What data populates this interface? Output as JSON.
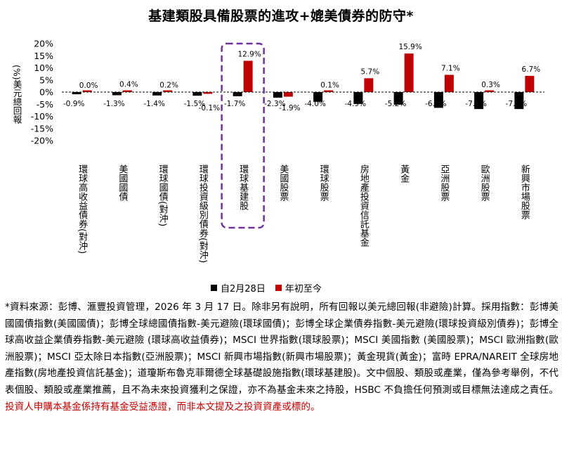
{
  "title": "基建類股具備股票的進攻+媲美債券的防守*",
  "chart_data": {
    "type": "bar",
    "ylabel": "(%)美元總回報",
    "ylim": [
      -20,
      20
    ],
    "yticks": [
      -20,
      -15,
      -10,
      -5,
      0,
      5,
      10,
      15,
      20
    ],
    "ytick_labels": [
      "-20%",
      "-15%",
      "-10%",
      "-5%",
      "0%",
      "5%",
      "10%",
      "15%",
      "20%"
    ],
    "grid": false,
    "legend_position": "bottom",
    "highlight_category_index": 4,
    "categories": [
      "環球高收益債券(對沖)",
      "美國國債",
      "環球國債(對沖)",
      "環球投資級別債券(對沖)",
      "環球基建股",
      "美國股票",
      "環球股票",
      "房地產投資信託基金",
      "黃金",
      "亞洲股票",
      "歐洲股票",
      "新興市場股票"
    ],
    "series": [
      {
        "name": "自2月28日",
        "color": "#000000",
        "values": [
          -0.9,
          -1.3,
          -1.4,
          -1.5,
          -1.7,
          -2.3,
          -4.0,
          -4.9,
          -5.2,
          -6.5,
          -7.0,
          -7.0
        ],
        "labels": [
          "-0.9%",
          "-1.3%",
          "-1.4%",
          "-1.5%",
          "-1.7%",
          "-2.3%",
          "-4.0%",
          "-4.9%",
          "-5.2%",
          "-6.5%",
          "-7.0%",
          "-7.0%"
        ]
      },
      {
        "name": "年初至今",
        "color": "#c00000",
        "values": [
          0.0,
          0.4,
          0.2,
          -0.1,
          12.9,
          -1.9,
          0.1,
          5.7,
          15.9,
          7.1,
          0.3,
          6.7
        ],
        "labels": [
          "0.0%",
          "0.4%",
          "0.2%",
          "-0.1%",
          "12.9%",
          "-1.9%",
          "0.1%",
          "5.7%",
          "15.9%",
          "7.1%",
          "0.3%",
          "6.7%"
        ]
      }
    ]
  },
  "notes": {
    "main": "*資料來源：彭博、滙豐投資管理，2026 年 3 月 17 日。除非另有說明，所有回報以美元總回報(非避險)計算。採用指數：彭博美國國債指數(美國國債)；彭博全球總國債指數-美元避險(環球國債)；彭博全球企業債券指數-美元避險(環球投資級別債券)；彭博全球高收益企業債券指數-美元避險 (環球高收益債券)；MSCI 世界指數(環球股票)；MSCI 美國指數 (美國股票)；MSCI 歐洲指數(歐洲股票)；MSCI 亞太除日本指數(亞洲股票)；MSCI 新興市場指數(新興市場股票)；黃金現貨(黃金)；富時 EPRA/NAREIT 全球房地產指數(房地產投資信託基金)；道瓊斯布魯克菲爾德全球基礎設施指數(環球基建股)。文中個股、類股或產業，僅為參考舉例，不代表個股、類股或產業推薦，且不為未來投資獲利之保證，亦不為基金未來之持股，HSBC 不負擔任何預測或目標無法達成之責任。",
    "warning": "投資人申購本基金係持有基金受益憑證，而非本文提及之投資資產或標的。"
  }
}
